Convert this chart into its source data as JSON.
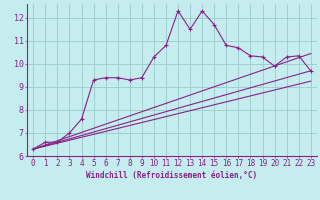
{
  "xlabel": "Windchill (Refroidissement éolien,°C)",
  "xlim": [
    -0.5,
    23.5
  ],
  "ylim": [
    6.0,
    12.6
  ],
  "yticks": [
    6,
    7,
    8,
    9,
    10,
    11,
    12
  ],
  "xticks": [
    0,
    1,
    2,
    3,
    4,
    5,
    6,
    7,
    8,
    9,
    10,
    11,
    12,
    13,
    14,
    15,
    16,
    17,
    18,
    19,
    20,
    21,
    22,
    23
  ],
  "bg_color": "#c5ecee",
  "line_color": "#882288",
  "grid_color": "#99cccc",
  "zigzag_x": [
    0,
    1,
    2,
    3,
    4,
    5,
    6,
    7,
    8,
    9,
    10,
    11,
    12,
    13,
    14,
    15,
    16,
    17,
    18,
    19,
    20,
    21,
    22,
    23
  ],
  "zigzag_y": [
    6.3,
    6.6,
    6.6,
    7.0,
    7.6,
    9.3,
    9.4,
    9.4,
    9.3,
    9.4,
    10.3,
    10.8,
    12.3,
    11.5,
    12.3,
    11.7,
    10.8,
    10.7,
    10.35,
    10.3,
    9.9,
    10.3,
    10.35,
    9.7
  ],
  "line1_x": [
    0,
    23
  ],
  "line1_y": [
    6.3,
    10.45
  ],
  "line2_x": [
    0,
    23
  ],
  "line2_y": [
    6.3,
    9.7
  ],
  "line3_x": [
    0,
    23
  ],
  "line3_y": [
    6.3,
    9.25
  ],
  "xlabel_fontsize": 5.5,
  "tick_fontsize": 5.5
}
